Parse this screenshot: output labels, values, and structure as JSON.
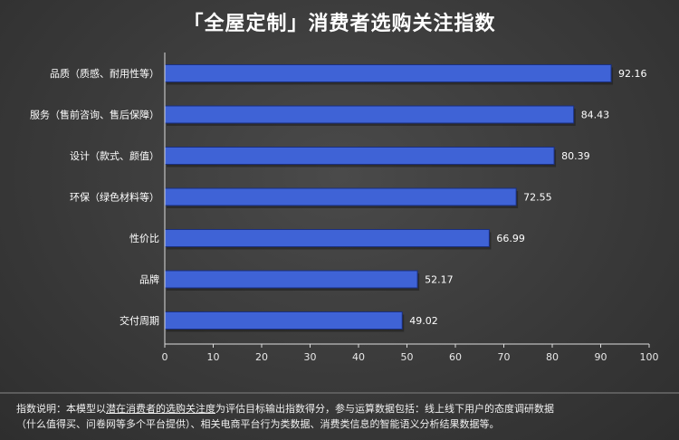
{
  "chart_data": {
    "type": "bar",
    "orientation": "horizontal",
    "title": "「全屋定制」消费者选购关注指数",
    "categories": [
      "品质（质感、耐用性等）",
      "服务（售前咨询、售后保障）",
      "设计（款式、颜值）",
      "环保（绿色材料等）",
      "性价比",
      "品牌",
      "交付周期"
    ],
    "values": [
      92.16,
      84.43,
      80.39,
      72.55,
      66.99,
      52.17,
      49.02
    ],
    "value_labels": [
      "92.16",
      "84.43",
      "80.39",
      "72.55",
      "66.99",
      "52.17",
      "49.02"
    ],
    "xlim": [
      0,
      100
    ],
    "xticks": [
      "0",
      "10",
      "20",
      "30",
      "40",
      "50",
      "60",
      "70",
      "80",
      "90",
      "100"
    ],
    "grid": false,
    "colors": {
      "bar": "#3f63d6",
      "bar_edge": "#1a2f80",
      "axis": "#dddddd"
    }
  },
  "footnote": {
    "line1_prefix": "指数说明：本模型以",
    "line1_highlight": "潜在消费者的选购关注度",
    "line1_suffix": "为评估目标输出指数得分，参与运算数据包括：线上线下用户的态度调研数据",
    "line2": "（什么值得买、问卷网等多个平台提供）、相关电商平台行为类数据、消费类信息的智能语义分析结果数据等。"
  }
}
